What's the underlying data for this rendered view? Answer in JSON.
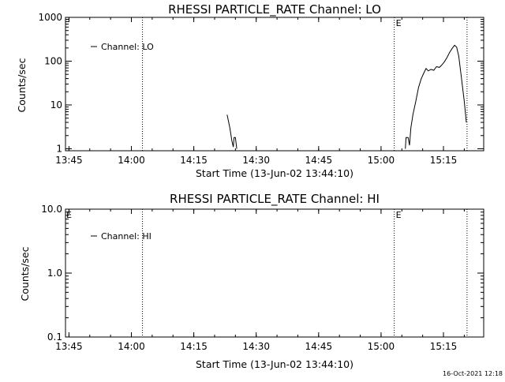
{
  "footer": {
    "timestamp": "16-Oct-2021 12:18"
  },
  "chart_data": [
    {
      "type": "line",
      "title": "RHESSI PARTICLE_RATE Channel: LO",
      "xlabel": "Start Time (13-Jun-02 13:44:10)",
      "ylabel": "Counts/sec",
      "yscale": "log",
      "ylim": [
        0.9,
        1000
      ],
      "xlim": [
        "13:44:10",
        "15:24:40"
      ],
      "x_tick_labels": [
        "13:45",
        "14:00",
        "14:15",
        "14:30",
        "14:45",
        "15:00",
        "15:15"
      ],
      "y_tick_labels": [
        "1",
        "10",
        "100",
        "1000"
      ],
      "y_tick_values": [
        1,
        10,
        100,
        1000
      ],
      "legend": {
        "position": "top-left",
        "entries": [
          "Channel: LO"
        ]
      },
      "event_markers": [
        {
          "time": "14:02:40",
          "label": ""
        },
        {
          "time": "15:03:10",
          "label": "E"
        },
        {
          "time": "15:20:40",
          "label": ""
        }
      ],
      "series": [
        {
          "name": "Channel: LO",
          "segments": [
            [
              {
                "t": "14:23:00",
                "y": 6
              },
              {
                "t": "14:23:40",
                "y": 3
              },
              {
                "t": "14:24:10",
                "y": 1.5
              },
              {
                "t": "14:24:30",
                "y": 1.1
              },
              {
                "t": "14:24:40",
                "y": 1.8
              },
              {
                "t": "14:25:00",
                "y": 1.8
              },
              {
                "t": "14:25:20",
                "y": 1
              }
            ],
            [
              {
                "t": "15:05:50",
                "y": 1
              },
              {
                "t": "15:06:00",
                "y": 1.8
              },
              {
                "t": "15:06:30",
                "y": 1.8
              },
              {
                "t": "15:06:50",
                "y": 1.2
              },
              {
                "t": "15:07:10",
                "y": 3
              },
              {
                "t": "15:07:40",
                "y": 6
              },
              {
                "t": "15:08:20",
                "y": 12
              },
              {
                "t": "15:09:00",
                "y": 25
              },
              {
                "t": "15:09:40",
                "y": 40
              },
              {
                "t": "15:10:20",
                "y": 55
              },
              {
                "t": "15:10:50",
                "y": 68
              },
              {
                "t": "15:11:20",
                "y": 60
              },
              {
                "t": "15:12:00",
                "y": 65
              },
              {
                "t": "15:12:40",
                "y": 62
              },
              {
                "t": "15:13:20",
                "y": 75
              },
              {
                "t": "15:14:00",
                "y": 72
              },
              {
                "t": "15:14:30",
                "y": 80
              },
              {
                "t": "15:15:10",
                "y": 95
              },
              {
                "t": "15:15:50",
                "y": 120
              },
              {
                "t": "15:16:30",
                "y": 160
              },
              {
                "t": "15:17:10",
                "y": 200
              },
              {
                "t": "15:17:40",
                "y": 230
              },
              {
                "t": "15:18:10",
                "y": 210
              },
              {
                "t": "15:18:40",
                "y": 130
              },
              {
                "t": "15:19:20",
                "y": 40
              },
              {
                "t": "15:20:00",
                "y": 12
              },
              {
                "t": "15:20:30",
                "y": 4
              }
            ]
          ]
        }
      ]
    },
    {
      "type": "line",
      "title": "RHESSI PARTICLE_RATE Channel: HI",
      "xlabel": "Start Time (13-Jun-02 13:44:10)",
      "ylabel": "Counts/sec",
      "yscale": "log",
      "ylim": [
        0.1,
        10
      ],
      "xlim": [
        "13:44:10",
        "15:24:40"
      ],
      "x_tick_labels": [
        "13:45",
        "14:00",
        "14:15",
        "14:30",
        "14:45",
        "15:00",
        "15:15"
      ],
      "y_tick_labels": [
        "0.1",
        "1.0",
        "10.0"
      ],
      "y_tick_values": [
        0.1,
        1,
        10
      ],
      "legend": {
        "position": "top-left",
        "entries": [
          "Channel: HI"
        ]
      },
      "event_markers": [
        {
          "time": "14:02:40",
          "label": ""
        },
        {
          "time": "15:03:10",
          "label": "E"
        },
        {
          "time": "15:20:40",
          "label": ""
        }
      ],
      "corner_labels": [
        "E"
      ],
      "series": [
        {
          "name": "Channel: HI",
          "segments": []
        }
      ]
    }
  ]
}
